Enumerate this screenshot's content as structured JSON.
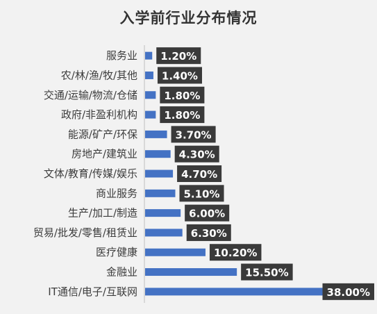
{
  "chart_data": {
    "type": "bar",
    "orientation": "horizontal",
    "title": "入学前行业分布情况",
    "categories": [
      "服务业",
      "农/林/渔/牧/其他",
      "交通/运输/物流/仓储",
      "政府/非盈利机构",
      "能源/矿产/环保",
      "房地产/建筑业",
      "文体/教育/传媒/娱乐",
      "商业服务",
      "生产/加工/制造",
      "贸易/批发/零售/租赁业",
      "医疗健康",
      "金融业",
      "IT通信/电子/互联网"
    ],
    "values": [
      1.2,
      1.4,
      1.8,
      1.8,
      3.7,
      4.3,
      4.7,
      5.1,
      6.0,
      6.3,
      10.2,
      15.5,
      38.0
    ],
    "value_labels": [
      "1.20%",
      "1.40%",
      "1.80%",
      "1.80%",
      "3.70%",
      "4.30%",
      "4.70%",
      "5.10%",
      "6.00%",
      "6.30%",
      "10.20%",
      "15.50%",
      "38.00%"
    ],
    "xlim": [
      0,
      38
    ],
    "grid": false,
    "legend": "none",
    "bar_color": "#4472c4",
    "label_bg_color": "#3a3a3a"
  }
}
